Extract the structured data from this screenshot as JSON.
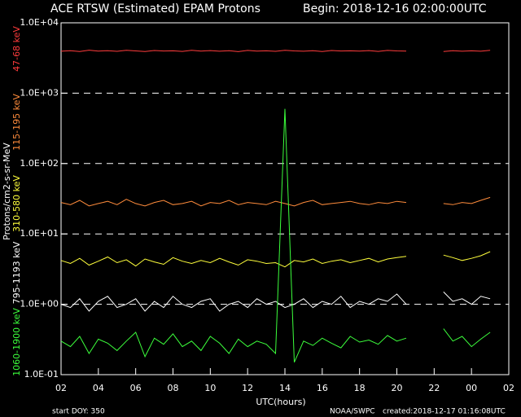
{
  "chart_data": {
    "type": "line",
    "title": "ACE RTSW (Estimated) EPAM Protons",
    "subtitle": "Begin: 2018-12-16 02:00:00UTC",
    "x_label": "UTC(hours)",
    "y_label": "Protons/cm2-s-sr-MeV",
    "footer_left": "start DOY:  350",
    "footer_middle": "NOAA/SWPC",
    "footer_right": "created:2018-12-17 01:16:08UTC",
    "log_y": true,
    "grid": true,
    "xlim": [
      2,
      26
    ],
    "xticks": [
      {
        "value": 2,
        "label": "02"
      },
      {
        "value": 4,
        "label": "04"
      },
      {
        "value": 6,
        "label": "06"
      },
      {
        "value": 8,
        "label": "08"
      },
      10,
      12,
      14,
      16,
      18,
      20,
      22,
      {
        "value": 24,
        "label": "00"
      },
      {
        "value": 26,
        "label": "02"
      }
    ],
    "ylim": [
      0.1,
      10000
    ],
    "yticks": [
      {
        "value": 0.1,
        "label": "1.0E-01"
      },
      {
        "value": 1,
        "label": "1.0E+00"
      },
      {
        "value": 10,
        "label": "1.0E+01"
      },
      {
        "value": 100,
        "label": "1.0E+02"
      },
      {
        "value": 1000,
        "label": "1.0E+03"
      },
      {
        "value": 10000,
        "label": "1.0E+04"
      }
    ],
    "x": [
      2,
      2.5,
      3,
      3.5,
      4,
      4.5,
      5,
      5.5,
      6,
      6.5,
      7,
      7.5,
      8,
      8.5,
      9,
      9.5,
      10,
      10.5,
      11,
      11.5,
      12,
      12.5,
      13,
      13.5,
      14,
      14.5,
      15,
      15.5,
      16,
      16.5,
      17,
      17.5,
      18,
      18.5,
      19,
      19.5,
      20,
      20.5,
      21.5,
      22.5,
      23,
      23.5,
      24,
      24.5,
      25
    ],
    "series": [
      {
        "name": "47-68 keV",
        "color": "#ff3c3c",
        "values": [
          3950,
          4010,
          3900,
          4080,
          3970,
          4020,
          3930,
          4060,
          3990,
          3910,
          4040,
          3980,
          4000,
          3920,
          4070,
          3960,
          4030,
          3940,
          4010,
          3890,
          4050,
          3970,
          4000,
          3930,
          4060,
          3990,
          3950,
          4020,
          3910,
          4040,
          3980,
          4000,
          3960,
          4030,
          3920,
          4050,
          3990,
          3970,
          null,
          3900,
          4020,
          3950,
          4000,
          3940,
          4060
        ]
      },
      {
        "name": "115-195 keV",
        "color": "#ff8c3c",
        "values": [
          28,
          26,
          30,
          25,
          27,
          29,
          26,
          31,
          27,
          25,
          28,
          30,
          26,
          27,
          29,
          25,
          28,
          27,
          30,
          26,
          28,
          27,
          26,
          29,
          27,
          25,
          28,
          30,
          26,
          27,
          28,
          29,
          27,
          26,
          28,
          27,
          29,
          28,
          null,
          27,
          26,
          28,
          27,
          30,
          33
        ]
      },
      {
        "name": "310-580 keV",
        "color": "#ffff3c",
        "values": [
          4.2,
          3.8,
          4.5,
          3.6,
          4.1,
          4.7,
          3.9,
          4.3,
          3.5,
          4.4,
          4.0,
          3.7,
          4.6,
          4.1,
          3.8,
          4.2,
          3.9,
          4.5,
          4.0,
          3.6,
          4.3,
          4.1,
          3.8,
          3.9,
          3.4,
          4.2,
          4.0,
          4.4,
          3.8,
          4.1,
          4.3,
          3.9,
          4.2,
          4.5,
          4.0,
          4.4,
          4.6,
          4.8,
          null,
          5.0,
          4.6,
          4.2,
          4.5,
          4.9,
          5.6
        ]
      },
      {
        "name": "795-1193 keV",
        "color": "#ffffff",
        "values": [
          1.0,
          0.9,
          1.2,
          0.8,
          1.1,
          1.3,
          0.9,
          1.0,
          1.2,
          0.8,
          1.1,
          0.9,
          1.3,
          1.0,
          0.9,
          1.1,
          1.2,
          0.8,
          1.0,
          1.1,
          0.9,
          1.2,
          1.0,
          1.1,
          0.9,
          1.0,
          1.2,
          0.9,
          1.1,
          1.0,
          1.3,
          0.9,
          1.1,
          1.0,
          1.2,
          1.1,
          1.4,
          1.0,
          null,
          1.5,
          1.1,
          1.2,
          1.0,
          1.3,
          1.2
        ]
      },
      {
        "name": "1060-1900 keV",
        "color": "#3cff3c",
        "values": [
          0.3,
          0.25,
          0.35,
          0.2,
          0.32,
          0.28,
          0.22,
          0.3,
          0.4,
          0.18,
          0.33,
          0.27,
          0.38,
          0.25,
          0.3,
          0.22,
          0.35,
          0.28,
          0.2,
          0.32,
          0.25,
          0.3,
          0.27,
          0.2,
          600,
          0.15,
          0.3,
          0.26,
          0.33,
          0.28,
          0.24,
          0.35,
          0.29,
          0.31,
          0.27,
          0.36,
          0.3,
          0.33,
          null,
          0.45,
          0.3,
          0.35,
          0.25,
          0.32,
          0.4
        ]
      }
    ]
  }
}
